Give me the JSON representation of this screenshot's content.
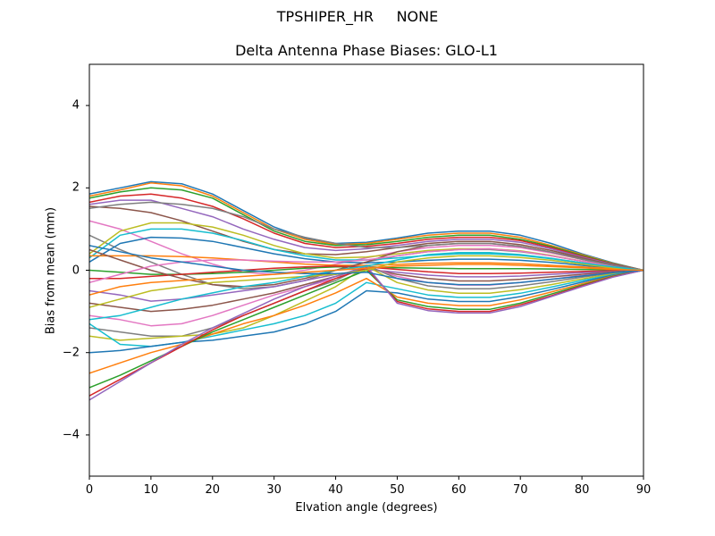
{
  "figure": {
    "suptitle": "TPSHIPER_HR     NONE",
    "title": "Delta Antenna Phase Biases: GLO-L1",
    "xlabel": "Elvation angle (degrees)",
    "ylabel": "Bias from mean (mm)",
    "xticks": [
      "0",
      "10",
      "20",
      "30",
      "40",
      "50",
      "60",
      "70",
      "80",
      "90"
    ],
    "yticks": [
      {
        "v": 4,
        "label": "4"
      },
      {
        "v": 2,
        "label": "2"
      },
      {
        "v": 0,
        "label": "0"
      },
      {
        "v": -2,
        "label": "−2"
      },
      {
        "v": -4,
        "label": "−4"
      }
    ]
  },
  "chart_data": {
    "type": "line",
    "title": "Delta Antenna Phase Biases: GLO-L1",
    "suptitle": "TPSHIPER_HR     NONE",
    "xlabel": "Elvation angle (degrees)",
    "ylabel": "Bias from mean (mm)",
    "xlim": [
      0,
      90
    ],
    "ylim": [
      -5,
      5
    ],
    "grid": false,
    "legend": "none",
    "colors": [
      "#1f77b4",
      "#ff7f0e",
      "#2ca02c",
      "#d62728",
      "#9467bd",
      "#8c564b",
      "#e377c2",
      "#7f7f7f",
      "#bcbd22",
      "#17becf"
    ],
    "x": [
      0,
      5,
      10,
      15,
      20,
      25,
      30,
      35,
      40,
      45,
      50,
      55,
      60,
      65,
      70,
      75,
      80,
      85,
      90
    ],
    "series": [
      {
        "name": "s1",
        "values": [
          1.85,
          2.0,
          2.15,
          2.1,
          1.85,
          1.45,
          1.05,
          0.78,
          0.65,
          0.68,
          0.78,
          0.9,
          0.95,
          0.95,
          0.85,
          0.65,
          0.4,
          0.18,
          0
        ]
      },
      {
        "name": "s2",
        "values": [
          1.8,
          1.95,
          2.12,
          2.05,
          1.8,
          1.4,
          1.0,
          0.75,
          0.62,
          0.65,
          0.75,
          0.85,
          0.9,
          0.9,
          0.8,
          0.6,
          0.38,
          0.17,
          0
        ]
      },
      {
        "name": "s3",
        "values": [
          1.75,
          1.9,
          2.0,
          1.95,
          1.75,
          1.35,
          0.95,
          0.7,
          0.6,
          0.62,
          0.7,
          0.8,
          0.85,
          0.85,
          0.75,
          0.58,
          0.36,
          0.16,
          0
        ]
      },
      {
        "name": "s4",
        "values": [
          1.65,
          1.8,
          1.85,
          1.75,
          1.55,
          1.25,
          0.9,
          0.65,
          0.55,
          0.58,
          0.65,
          0.75,
          0.8,
          0.8,
          0.72,
          0.55,
          0.34,
          0.15,
          0
        ]
      },
      {
        "name": "s5",
        "values": [
          1.6,
          1.7,
          1.7,
          1.5,
          1.3,
          1.0,
          0.75,
          0.55,
          0.48,
          0.52,
          0.6,
          0.7,
          0.75,
          0.75,
          0.68,
          0.52,
          0.32,
          0.14,
          0
        ]
      },
      {
        "name": "s6",
        "values": [
          1.55,
          1.5,
          1.4,
          1.2,
          0.95,
          0.7,
          0.5,
          0.4,
          0.38,
          0.45,
          0.55,
          0.65,
          0.7,
          0.7,
          0.62,
          0.48,
          0.3,
          0.13,
          0
        ]
      },
      {
        "name": "s7",
        "values": [
          1.2,
          1.0,
          0.7,
          0.4,
          0.15,
          -0.05,
          -0.1,
          0.0,
          0.15,
          0.3,
          0.45,
          0.55,
          0.6,
          0.6,
          0.55,
          0.42,
          0.26,
          0.11,
          0
        ]
      },
      {
        "name": "s8",
        "values": [
          0.85,
          0.5,
          0.2,
          -0.1,
          -0.35,
          -0.45,
          -0.4,
          -0.25,
          0.0,
          0.2,
          0.35,
          0.45,
          0.5,
          0.5,
          0.45,
          0.35,
          0.22,
          0.1,
          0
        ]
      },
      {
        "name": "s9",
        "values": [
          0.4,
          0.95,
          1.15,
          1.15,
          1.05,
          0.85,
          0.6,
          0.4,
          0.3,
          0.32,
          0.4,
          0.48,
          0.52,
          0.52,
          0.47,
          0.36,
          0.22,
          0.1,
          0
        ]
      },
      {
        "name": "s10",
        "values": [
          0.3,
          0.85,
          1.0,
          1.0,
          0.9,
          0.72,
          0.5,
          0.35,
          0.25,
          0.25,
          0.3,
          0.36,
          0.4,
          0.4,
          0.36,
          0.28,
          0.18,
          0.08,
          0
        ]
      },
      {
        "name": "s11",
        "values": [
          0.2,
          0.65,
          0.8,
          0.78,
          0.7,
          0.55,
          0.4,
          0.28,
          0.2,
          0.18,
          0.2,
          0.24,
          0.27,
          0.27,
          0.24,
          0.19,
          0.12,
          0.05,
          0
        ]
      },
      {
        "name": "s12",
        "values": [
          0.35,
          0.35,
          0.35,
          0.33,
          0.3,
          0.25,
          0.2,
          0.15,
          0.12,
          0.12,
          0.14,
          0.17,
          0.18,
          0.18,
          0.16,
          0.12,
          0.08,
          0.04,
          0
        ]
      },
      {
        "name": "s13",
        "values": [
          0.0,
          -0.05,
          -0.1,
          -0.1,
          -0.08,
          -0.05,
          0.0,
          0.05,
          0.08,
          0.08,
          0.06,
          0.05,
          0.04,
          0.04,
          0.04,
          0.03,
          0.02,
          0.01,
          0
        ]
      },
      {
        "name": "s14",
        "values": [
          -0.2,
          -0.2,
          -0.15,
          -0.1,
          -0.05,
          0.0,
          0.05,
          0.08,
          0.1,
          0.08,
          0.02,
          -0.04,
          -0.08,
          -0.08,
          -0.07,
          -0.05,
          -0.03,
          -0.01,
          0
        ]
      },
      {
        "name": "s15",
        "values": [
          -0.5,
          -0.6,
          -0.75,
          -0.7,
          -0.6,
          -0.5,
          -0.4,
          -0.25,
          -0.1,
          0.02,
          -0.05,
          -0.12,
          -0.16,
          -0.16,
          -0.14,
          -0.1,
          -0.06,
          -0.03,
          0
        ]
      },
      {
        "name": "s16",
        "values": [
          -0.8,
          -0.9,
          -1.0,
          -0.95,
          -0.85,
          -0.7,
          -0.55,
          -0.35,
          -0.15,
          0.05,
          -0.1,
          -0.2,
          -0.26,
          -0.26,
          -0.22,
          -0.16,
          -0.1,
          -0.04,
          0
        ]
      },
      {
        "name": "s17",
        "values": [
          -1.1,
          -1.2,
          -1.35,
          -1.3,
          -1.1,
          -0.85,
          -0.6,
          -0.4,
          -0.2,
          0.1,
          -0.15,
          -0.3,
          -0.36,
          -0.36,
          -0.3,
          -0.22,
          -0.13,
          -0.06,
          0
        ]
      },
      {
        "name": "s18",
        "values": [
          -1.4,
          -1.5,
          -1.6,
          -1.6,
          -1.4,
          -1.1,
          -0.8,
          -0.5,
          -0.25,
          0.12,
          -0.2,
          -0.38,
          -0.45,
          -0.45,
          -0.38,
          -0.28,
          -0.17,
          -0.07,
          0
        ]
      },
      {
        "name": "s19",
        "values": [
          -1.6,
          -1.7,
          -1.65,
          -1.6,
          -1.55,
          -1.4,
          -1.1,
          -0.75,
          -0.4,
          0.1,
          -0.3,
          -0.48,
          -0.56,
          -0.56,
          -0.47,
          -0.35,
          -0.21,
          -0.09,
          0
        ]
      },
      {
        "name": "s20",
        "values": [
          -1.3,
          -1.8,
          -1.85,
          -1.75,
          -1.6,
          -1.45,
          -1.3,
          -1.1,
          -0.8,
          -0.3,
          -0.45,
          -0.6,
          -0.66,
          -0.66,
          -0.56,
          -0.41,
          -0.25,
          -0.11,
          0
        ]
      },
      {
        "name": "s21",
        "values": [
          -2.0,
          -1.95,
          -1.85,
          -1.75,
          -1.7,
          -1.6,
          -1.5,
          -1.3,
          -1.0,
          -0.5,
          -0.55,
          -0.7,
          -0.76,
          -0.76,
          -0.64,
          -0.47,
          -0.29,
          -0.12,
          0
        ]
      },
      {
        "name": "s22",
        "values": [
          -2.5,
          -2.25,
          -2.0,
          -1.8,
          -1.55,
          -1.3,
          -1.1,
          -0.85,
          -0.55,
          -0.2,
          -0.65,
          -0.8,
          -0.86,
          -0.86,
          -0.72,
          -0.53,
          -0.33,
          -0.14,
          0
        ]
      },
      {
        "name": "s23",
        "values": [
          -2.85,
          -2.55,
          -2.2,
          -1.85,
          -1.5,
          -1.2,
          -0.9,
          -0.6,
          -0.3,
          0.0,
          -0.72,
          -0.88,
          -0.95,
          -0.95,
          -0.8,
          -0.58,
          -0.36,
          -0.15,
          0
        ]
      },
      {
        "name": "s24",
        "values": [
          -3.05,
          -2.65,
          -2.25,
          -1.85,
          -1.45,
          -1.1,
          -0.8,
          -0.5,
          -0.2,
          0.05,
          -0.76,
          -0.94,
          -1.0,
          -1.0,
          -0.84,
          -0.62,
          -0.38,
          -0.16,
          0
        ]
      },
      {
        "name": "s25",
        "values": [
          -3.15,
          -2.7,
          -2.25,
          -1.8,
          -1.4,
          -1.05,
          -0.7,
          -0.4,
          -0.15,
          0.1,
          -0.8,
          -0.98,
          -1.04,
          -1.04,
          -0.88,
          -0.64,
          -0.4,
          -0.17,
          0
        ]
      },
      {
        "name": "s26",
        "values": [
          0.5,
          0.25,
          0.0,
          -0.2,
          -0.35,
          -0.4,
          -0.35,
          -0.2,
          0.0,
          0.2,
          0.45,
          0.6,
          0.65,
          0.65,
          0.58,
          0.44,
          0.27,
          0.12,
          0
        ]
      },
      {
        "name": "s27",
        "values": [
          -0.3,
          -0.1,
          0.1,
          0.2,
          0.25,
          0.25,
          0.22,
          0.2,
          0.2,
          0.25,
          0.35,
          0.45,
          0.5,
          0.52,
          0.46,
          0.35,
          0.22,
          0.1,
          0
        ]
      },
      {
        "name": "s28",
        "values": [
          1.5,
          1.6,
          1.65,
          1.6,
          1.5,
          1.3,
          1.0,
          0.8,
          0.65,
          0.55,
          0.55,
          0.6,
          0.65,
          0.65,
          0.58,
          0.44,
          0.27,
          0.12,
          0
        ]
      },
      {
        "name": "s29",
        "values": [
          -0.9,
          -0.7,
          -0.5,
          -0.4,
          -0.3,
          -0.25,
          -0.2,
          -0.15,
          -0.1,
          0.0,
          0.2,
          0.3,
          0.35,
          0.35,
          0.31,
          0.24,
          0.15,
          0.06,
          0
        ]
      },
      {
        "name": "s30",
        "values": [
          -1.2,
          -1.1,
          -0.9,
          -0.7,
          -0.55,
          -0.4,
          -0.3,
          -0.15,
          0.0,
          0.1,
          0.25,
          0.38,
          0.43,
          0.43,
          0.38,
          0.29,
          0.18,
          0.08,
          0
        ]
      },
      {
        "name": "s31",
        "values": [
          0.6,
          0.45,
          0.3,
          0.2,
          0.1,
          0.0,
          -0.05,
          -0.08,
          -0.08,
          -0.05,
          -0.2,
          -0.3,
          -0.35,
          -0.35,
          -0.3,
          -0.22,
          -0.14,
          -0.06,
          0
        ]
      },
      {
        "name": "s32",
        "values": [
          -0.6,
          -0.4,
          -0.3,
          -0.25,
          -0.2,
          -0.15,
          -0.1,
          -0.05,
          0.0,
          0.05,
          0.1,
          0.12,
          0.14,
          0.14,
          0.12,
          0.09,
          0.06,
          0.02,
          0
        ]
      }
    ]
  }
}
